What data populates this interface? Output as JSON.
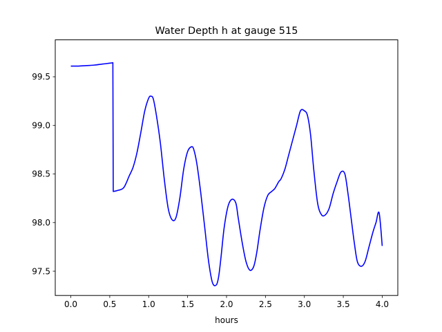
{
  "chart_data": {
    "type": "line",
    "title": "Water Depth h at gauge 515",
    "xlabel": "hours",
    "ylabel": "",
    "xlim": [
      -0.2,
      4.2
    ],
    "ylim": [
      97.25,
      99.88
    ],
    "x_ticks": [
      0.0,
      0.5,
      1.0,
      1.5,
      2.0,
      2.5,
      3.0,
      3.5,
      4.0
    ],
    "x_tick_labels": [
      "0.0",
      "0.5",
      "1.0",
      "1.5",
      "2.0",
      "2.5",
      "3.0",
      "3.5",
      "4.0"
    ],
    "y_ticks": [
      97.5,
      98.0,
      98.5,
      99.0,
      99.5
    ],
    "y_tick_labels": [
      "97.5",
      "98.0",
      "98.5",
      "99.0",
      "99.5"
    ],
    "grid": false,
    "color": "#0000ff",
    "series": [
      {
        "x": [
          0.0,
          0.1,
          0.2,
          0.3,
          0.4,
          0.5,
          0.54,
          0.545,
          0.6,
          0.68,
          0.75,
          0.8,
          0.85,
          0.9,
          0.95,
          1.0,
          1.03,
          1.06,
          1.1,
          1.15,
          1.2,
          1.25,
          1.3,
          1.35,
          1.4,
          1.45,
          1.5,
          1.55,
          1.58,
          1.62,
          1.67,
          1.72,
          1.77,
          1.82,
          1.87,
          1.9,
          1.93,
          1.97,
          2.02,
          2.07,
          2.12,
          2.15,
          2.2,
          2.25,
          2.3,
          2.35,
          2.39,
          2.43,
          2.48,
          2.53,
          2.58,
          2.62,
          2.67,
          2.7,
          2.75,
          2.8,
          2.85,
          2.9,
          2.95,
          3.0,
          3.04,
          3.08,
          3.12,
          3.17,
          3.22,
          3.27,
          3.32,
          3.37,
          3.42,
          3.47,
          3.52,
          3.56,
          3.6,
          3.64,
          3.68,
          3.73,
          3.78,
          3.83,
          3.88,
          3.92,
          3.96,
          4.0
        ],
        "y": [
          99.61,
          99.61,
          99.615,
          99.62,
          99.63,
          99.64,
          99.645,
          98.32,
          98.33,
          98.36,
          98.48,
          98.57,
          98.72,
          98.93,
          99.15,
          99.28,
          99.3,
          99.27,
          99.1,
          98.82,
          98.45,
          98.15,
          98.03,
          98.05,
          98.25,
          98.55,
          98.73,
          98.78,
          98.75,
          98.6,
          98.3,
          97.95,
          97.6,
          97.38,
          97.36,
          97.45,
          97.65,
          97.95,
          98.17,
          98.24,
          98.2,
          98.05,
          97.8,
          97.6,
          97.51,
          97.55,
          97.7,
          97.92,
          98.15,
          98.28,
          98.32,
          98.35,
          98.42,
          98.45,
          98.55,
          98.7,
          98.85,
          99.0,
          99.15,
          99.15,
          99.1,
          98.9,
          98.55,
          98.2,
          98.08,
          98.08,
          98.15,
          98.3,
          98.42,
          98.52,
          98.5,
          98.3,
          98.05,
          97.8,
          97.6,
          97.55,
          97.6,
          97.75,
          97.9,
          98.0,
          98.1,
          97.76
        ]
      }
    ]
  }
}
